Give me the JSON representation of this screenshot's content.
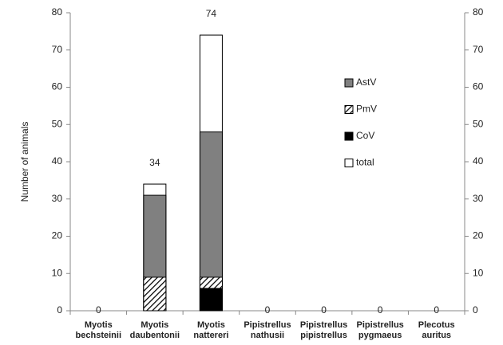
{
  "chart_data": {
    "type": "bar",
    "overlap": true,
    "y_label": "Number of animals",
    "categories": [
      "Myotis bechsteinii",
      "Myotis daubentonii",
      "Myotis nattereri",
      "Pipistrellus nathusii",
      "Pipistrellus pipistrellus",
      "Pipistrellus pygmaeus",
      "Plecotus auritus"
    ],
    "series": [
      {
        "name": "AstV",
        "color": "#808080",
        "values": [
          0,
          31,
          48,
          0,
          0,
          0,
          0
        ]
      },
      {
        "name": "PmV",
        "color": "#000000",
        "pattern": "hatch",
        "values": [
          0,
          9,
          9,
          0,
          0,
          0,
          0
        ]
      },
      {
        "name": "CoV",
        "color": "#000000",
        "values": [
          0,
          0,
          6,
          0,
          0,
          0,
          0
        ]
      },
      {
        "name": "total",
        "color": "#ffffff",
        "values": [
          0,
          34,
          74,
          0,
          0,
          0,
          0
        ],
        "labels": true
      }
    ],
    "ylim": [
      0,
      80
    ],
    "yticks": [
      0,
      10,
      20,
      30,
      40,
      50,
      60,
      70,
      80
    ],
    "y2lim": [
      0,
      80
    ],
    "y2ticks": [
      0,
      10,
      20,
      30,
      40,
      50,
      60,
      70,
      80
    ],
    "grid": false,
    "legend": "upper right"
  }
}
